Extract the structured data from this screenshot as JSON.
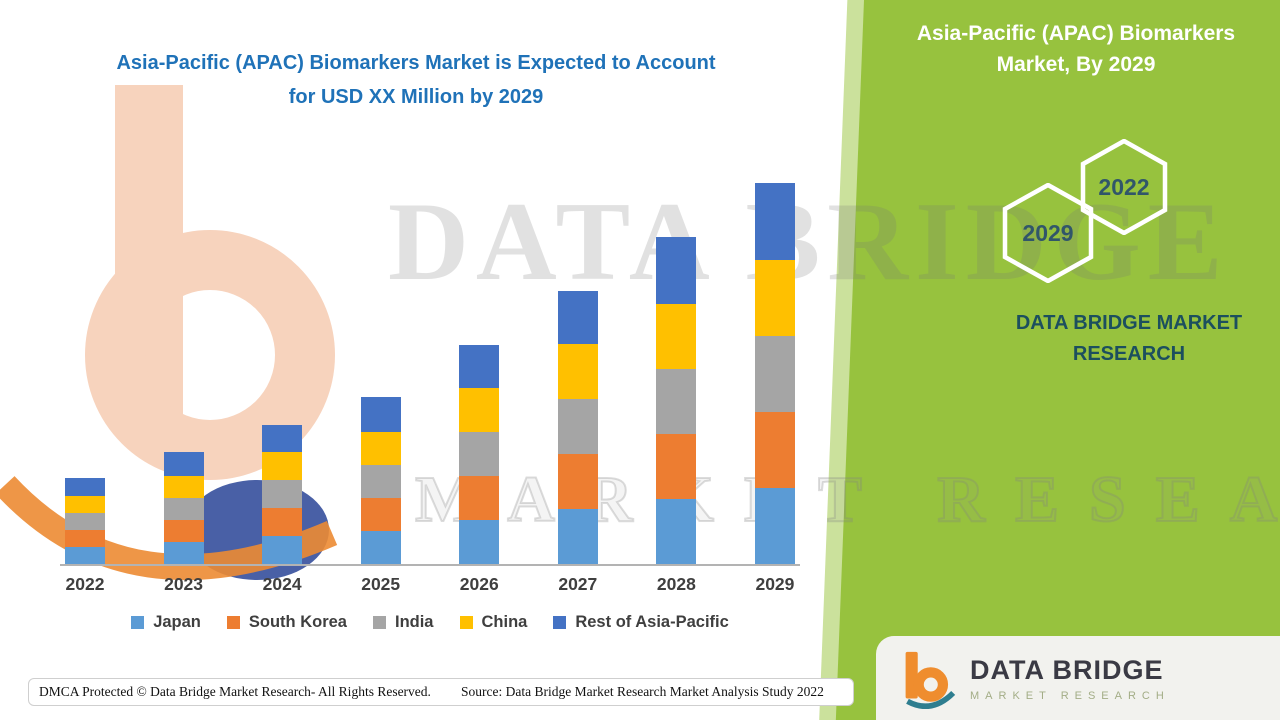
{
  "header": {
    "title_line1": "Asia-Pacific (APAC) Biomarkers Market is Expected to Account",
    "title_line2": "for USD XX Million by 2029"
  },
  "side_panel": {
    "title_line1": "Asia-Pacific (APAC) Biomarkers",
    "title_line2": "Market, By 2029",
    "hexagon_back_label": "2022",
    "hexagon_front_label": "2029",
    "brand_line1": "DATA BRIDGE MARKET",
    "brand_line2": "RESEARCH",
    "panel_color": "#97c23e"
  },
  "watermark": {
    "line1": "DATA BRIDGE",
    "line2": "MARKET RESEARCH"
  },
  "footer": {
    "dmca": "DMCA Protected © Data Bridge Market Research- All Rights Reserved.",
    "source": "Source: Data Bridge Market Research Market Analysis Study 2022",
    "logo_name": "DATA BRIDGE",
    "logo_tagline": "MARKET RESEARCH"
  },
  "chart_data": {
    "type": "bar",
    "stacked": true,
    "title": "Asia-Pacific (APAC) Biomarkers Market is Expected to Account for USD XX Million by 2029",
    "categories": [
      "2022",
      "2023",
      "2024",
      "2025",
      "2026",
      "2027",
      "2028",
      "2029"
    ],
    "series": [
      {
        "name": "Japan",
        "color": "#5b9bd5",
        "values": [
          17,
          22,
          28,
          33,
          44,
          55,
          65,
          76
        ]
      },
      {
        "name": "South Korea",
        "color": "#ed7d31",
        "values": [
          17,
          22,
          28,
          33,
          44,
          55,
          65,
          76
        ]
      },
      {
        "name": "India",
        "color": "#a5a5a5",
        "values": [
          17,
          22,
          28,
          33,
          44,
          55,
          65,
          76
        ]
      },
      {
        "name": "China",
        "color": "#ffc000",
        "values": [
          17,
          22,
          28,
          33,
          44,
          55,
          65,
          76
        ]
      },
      {
        "name": "Rest of Asia-Pacific",
        "color": "#4472c4",
        "values": [
          18,
          24,
          27,
          35,
          43,
          53,
          67,
          77
        ]
      }
    ],
    "totals": [
      86,
      112,
      139,
      167,
      219,
      273,
      327,
      381
    ],
    "ylim": [
      0,
      400
    ],
    "yaxis_visible": false,
    "grid": false,
    "legend_position": "bottom",
    "values_note": "Relative values estimated from bar heights; actual figures shown as 'USD XX Million'."
  }
}
